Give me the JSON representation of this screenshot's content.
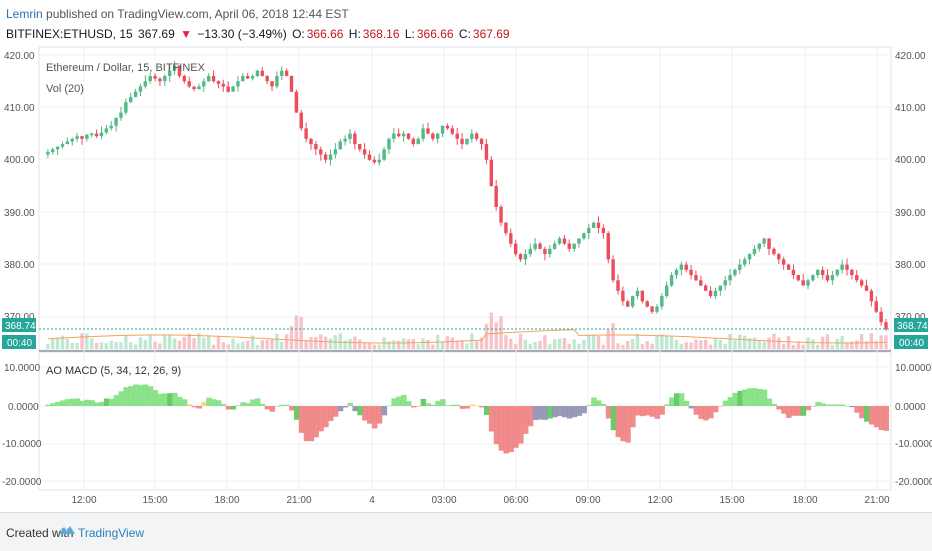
{
  "header": {
    "author": "Lemrin",
    "published_text": " published on TradingView.com, April 06, 2018 12:44 EST",
    "symbol": "BITFINEX:ETHUSD, 15",
    "last": "367.69",
    "arrow": "▼",
    "change": "−13.30 (−3.49%)",
    "o_label": "O:",
    "o_val": "366.66",
    "h_label": "H:",
    "h_val": "368.16",
    "l_label": "L:",
    "l_val": "366.66",
    "c_label": "C:",
    "c_val": "367.69"
  },
  "main_pane": {
    "title": "Ethereum / Dollar, 15, BITFINEX",
    "volume_label": "Vol (20)",
    "price_ticks": [
      "420.00",
      "410.00",
      "400.00",
      "390.00",
      "380.00",
      "370.00"
    ],
    "last_price_badge": "368.74",
    "countdown_badge": "00:40"
  },
  "macd_pane": {
    "title": "AO MACD (5, 34, 12, 26, 9)",
    "ticks": [
      "10.0000",
      "0.0000",
      "-10.0000",
      "-20.0000"
    ]
  },
  "time_axis": {
    "labels": [
      "12:00",
      "15:00",
      "18:00",
      "21:00",
      "4",
      "03:00",
      "06:00",
      "09:00",
      "12:00",
      "15:00",
      "18:00",
      "21:00"
    ]
  },
  "footer": {
    "created_with": "Created with",
    "brand": "TradingView"
  },
  "colors": {
    "up": "#53b987",
    "down": "#eb4d5c",
    "grid": "#eef0f3",
    "price_badge": "#26a69a"
  },
  "chart_data": {
    "type": "candlestick",
    "ylim": [
      365,
      421
    ],
    "price_path": [
      401,
      401.5,
      402,
      402.5,
      403,
      403.5,
      404,
      404.5,
      404,
      404.8,
      405,
      404.5,
      405.2,
      406,
      406.5,
      408,
      409,
      411,
      412,
      413,
      414,
      415,
      416,
      415.5,
      415,
      416,
      417,
      418,
      416,
      415,
      414,
      413.5,
      414,
      415,
      416,
      415,
      414.5,
      414,
      413,
      414,
      415,
      416,
      415.5,
      416,
      417,
      416,
      415,
      414,
      416,
      417,
      416,
      413,
      409,
      406,
      404,
      403,
      402,
      401,
      400,
      401,
      402,
      403.5,
      404,
      405,
      403,
      402,
      401,
      400,
      399.5,
      400,
      402,
      404,
      405,
      404.5,
      405,
      404,
      403,
      404,
      406,
      405,
      404,
      405,
      406.5,
      406,
      405,
      404,
      403,
      404,
      405,
      404,
      403,
      400,
      395,
      391,
      388,
      386,
      384,
      382,
      381,
      382,
      383,
      384,
      383,
      382,
      383,
      384,
      385,
      384,
      383,
      384,
      385,
      386,
      387,
      388,
      387,
      386,
      381,
      377,
      375,
      373,
      372,
      374,
      375,
      373,
      372,
      371,
      372,
      374,
      376,
      378,
      379,
      380,
      379,
      378,
      377,
      376,
      375,
      374,
      375,
      376,
      377,
      378,
      379,
      380,
      381,
      382,
      383,
      384,
      385,
      383,
      382,
      381,
      380,
      379,
      378,
      377,
      376,
      377,
      378,
      379,
      378,
      377,
      378,
      379,
      380,
      379,
      378,
      377,
      376,
      375,
      373,
      371,
      369,
      367.7
    ],
    "volume_ma": "Vol (20)",
    "macd_series": "AO MACD (5, 34, 12, 26, 9)"
  }
}
